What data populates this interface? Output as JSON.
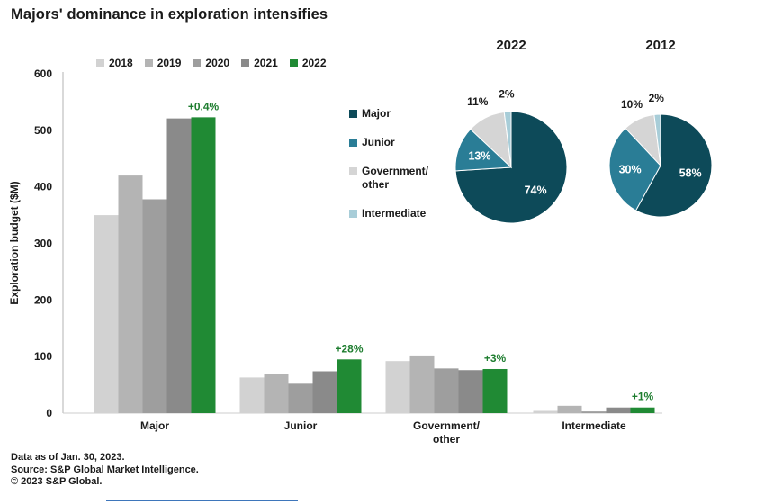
{
  "page": {
    "title": "Majors' dominance in exploration intensifies"
  },
  "chart_data": [
    {
      "id": "exploration-budget-bars",
      "type": "bar",
      "title": "",
      "xlabel": "",
      "ylabel": "Exploration budget ($M)",
      "ylim": [
        0,
        600
      ],
      "yticks": [
        0,
        100,
        200,
        300,
        400,
        500,
        600
      ],
      "grid": false,
      "legend_position": "top",
      "categories": [
        "Major",
        "Junior",
        "Government/\nother",
        "Intermediate"
      ],
      "series": [
        {
          "name": "2018",
          "color": "#d2d2d2",
          "values": [
            350,
            63,
            92,
            4
          ]
        },
        {
          "name": "2019",
          "color": "#b4b4b4",
          "values": [
            420,
            69,
            102,
            13
          ]
        },
        {
          "name": "2020",
          "color": "#9e9e9e",
          "values": [
            378,
            52,
            79,
            3
          ]
        },
        {
          "name": "2021",
          "color": "#8a8a8a",
          "values": [
            521,
            74,
            76,
            10
          ]
        },
        {
          "name": "2022",
          "color": "#208a34",
          "values": [
            523,
            95,
            78,
            10
          ]
        }
      ],
      "annotations": [
        "+0.4%",
        "+28%",
        "+3%",
        "+1%"
      ],
      "annotation_color": "#1e7d2f"
    },
    {
      "id": "pie-2022",
      "type": "pie",
      "title": "2022",
      "slices": [
        {
          "name": "Major",
          "value": 74,
          "label": "74%",
          "color": "#0d4a59",
          "label_inside": true
        },
        {
          "name": "Junior",
          "value": 13,
          "label": "13%",
          "color": "#2a7d96",
          "label_inside": true
        },
        {
          "name": "Government/other",
          "value": 11,
          "label": "11%",
          "color": "#d5d5d5",
          "label_inside": false
        },
        {
          "name": "Intermediate",
          "value": 2,
          "label": "2%",
          "color": "#a8cdd8",
          "label_inside": false
        }
      ]
    },
    {
      "id": "pie-2012",
      "type": "pie",
      "title": "2012",
      "slices": [
        {
          "name": "Major",
          "value": 58,
          "label": "58%",
          "color": "#0d4a59",
          "label_inside": true
        },
        {
          "name": "Junior",
          "value": 30,
          "label": "30%",
          "color": "#2a7d96",
          "label_inside": true
        },
        {
          "name": "Government/other",
          "value": 10,
          "label": "10%",
          "color": "#d5d5d5",
          "label_inside": false
        },
        {
          "name": "Intermediate",
          "value": 2,
          "label": "2%",
          "color": "#a8cdd8",
          "label_inside": false
        }
      ]
    }
  ],
  "pie_legend": {
    "items": [
      {
        "label": "Major",
        "color": "#0d4a59"
      },
      {
        "label": "Junior",
        "color": "#2a7d96"
      },
      {
        "label": "Government/\nother",
        "color": "#d5d5d5"
      },
      {
        "label": "Intermediate",
        "color": "#a8cdd8"
      }
    ]
  },
  "footer": {
    "line1": "Data as of Jan. 30, 2023.",
    "line2": "Source: S&P Global Market Intelligence.",
    "line3": "© 2023 S&P Global.",
    "rule_color": "#3e76bb"
  }
}
